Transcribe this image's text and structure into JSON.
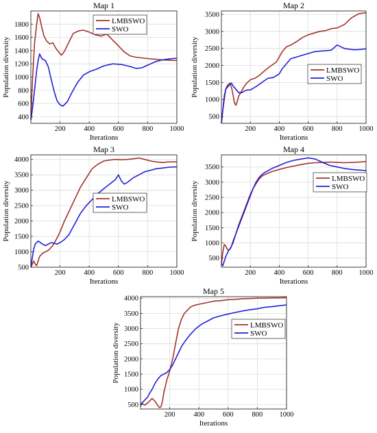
{
  "chart_data": [
    {
      "type": "line",
      "title": "Map 1",
      "xlabel": "Iterations",
      "ylabel": "Population diversity",
      "xlim": [
        0,
        1000
      ],
      "ylim": [
        300,
        2000
      ],
      "xticks": [
        200,
        400,
        600,
        800,
        1000
      ],
      "yticks": [
        400,
        600,
        800,
        1000,
        1200,
        1400,
        1600,
        1800
      ],
      "grid": true,
      "legend_position": "top-right",
      "series": [
        {
          "name": "LMBSWO",
          "color": "#a3322a",
          "x": [
            0,
            10,
            25,
            40,
            50,
            60,
            75,
            90,
            110,
            130,
            150,
            170,
            190,
            210,
            230,
            250,
            270,
            290,
            310,
            330,
            360,
            400,
            440,
            480,
            520,
            560,
            600,
            640,
            680,
            720,
            760,
            800,
            850,
            900,
            950,
            1000
          ],
          "y": [
            350,
            900,
            1500,
            1800,
            1960,
            1900,
            1750,
            1620,
            1540,
            1500,
            1520,
            1440,
            1380,
            1330,
            1390,
            1480,
            1570,
            1660,
            1680,
            1700,
            1710,
            1680,
            1640,
            1620,
            1650,
            1560,
            1470,
            1380,
            1320,
            1300,
            1290,
            1280,
            1270,
            1260,
            1255,
            1250
          ]
        },
        {
          "name": "SWO",
          "color": "#1f1fd6",
          "x": [
            0,
            10,
            20,
            30,
            40,
            50,
            60,
            70,
            80,
            100,
            120,
            140,
            160,
            180,
            200,
            220,
            250,
            280,
            320,
            360,
            400,
            450,
            500,
            560,
            620,
            680,
            720,
            760,
            800,
            850,
            900,
            950,
            1000
          ],
          "y": [
            350,
            500,
            700,
            900,
            1100,
            1250,
            1350,
            1300,
            1270,
            1250,
            1150,
            960,
            780,
            640,
            580,
            560,
            630,
            760,
            920,
            1030,
            1080,
            1120,
            1170,
            1200,
            1190,
            1160,
            1130,
            1140,
            1180,
            1230,
            1260,
            1275,
            1285
          ]
        }
      ]
    },
    {
      "type": "line",
      "title": "Map 2",
      "xlabel": "Iterations",
      "ylabel": "Population diversity",
      "xlim": [
        0,
        1000
      ],
      "ylim": [
        300,
        3600
      ],
      "xticks": [
        200,
        400,
        600,
        800,
        1000
      ],
      "yticks": [
        500,
        1000,
        1500,
        2000,
        2500,
        3000,
        3500
      ],
      "grid": true,
      "legend_position": "center-right",
      "series": [
        {
          "name": "LMBSWO",
          "color": "#a3322a",
          "x": [
            0,
            10,
            20,
            30,
            40,
            50,
            60,
            70,
            80,
            90,
            100,
            110,
            120,
            140,
            160,
            180,
            200,
            230,
            260,
            300,
            340,
            380,
            400,
            420,
            450,
            480,
            520,
            560,
            600,
            640,
            680,
            720,
            760,
            800,
            850,
            900,
            950,
            1000
          ],
          "y": [
            300,
            700,
            1000,
            1300,
            1400,
            1450,
            1480,
            1350,
            1150,
            900,
            830,
            950,
            1100,
            1250,
            1400,
            1500,
            1580,
            1620,
            1700,
            1850,
            1980,
            2100,
            2250,
            2400,
            2550,
            2600,
            2700,
            2820,
            2900,
            2950,
            3000,
            3020,
            3080,
            3100,
            3200,
            3400,
            3520,
            3550
          ]
        },
        {
          "name": "SWO",
          "color": "#1f1fd6",
          "x": [
            0,
            10,
            20,
            30,
            40,
            50,
            60,
            70,
            80,
            100,
            120,
            140,
            160,
            180,
            200,
            240,
            280,
            320,
            360,
            400,
            420,
            450,
            480,
            520,
            560,
            600,
            640,
            680,
            720,
            760,
            800,
            820,
            850,
            880,
            920,
            960,
            1000
          ],
          "y": [
            300,
            700,
            1100,
            1300,
            1350,
            1400,
            1450,
            1480,
            1400,
            1300,
            1200,
            1200,
            1250,
            1280,
            1280,
            1380,
            1500,
            1620,
            1650,
            1750,
            1900,
            2050,
            2200,
            2250,
            2300,
            2350,
            2400,
            2420,
            2430,
            2450,
            2600,
            2560,
            2500,
            2480,
            2460,
            2470,
            2490
          ]
        }
      ]
    },
    {
      "type": "line",
      "title": "Map 3",
      "xlabel": "Iterations",
      "ylabel": "Population diversity",
      "xlim": [
        0,
        1000
      ],
      "ylim": [
        500,
        4150
      ],
      "xticks": [
        200,
        400,
        600,
        800,
        1000
      ],
      "yticks": [
        500,
        1000,
        1500,
        2000,
        2500,
        3000,
        3500,
        4000
      ],
      "grid": true,
      "legend_position": "center-right",
      "series": [
        {
          "name": "LMBSWO",
          "color": "#a3322a",
          "x": [
            0,
            10,
            20,
            30,
            40,
            50,
            60,
            80,
            100,
            120,
            150,
            180,
            200,
            230,
            260,
            300,
            340,
            380,
            420,
            460,
            500,
            540,
            580,
            620,
            660,
            700,
            740,
            780,
            820,
            860,
            900,
            940,
            1000
          ],
          "y": [
            500,
            600,
            700,
            600,
            550,
            700,
            850,
            950,
            1000,
            1050,
            1200,
            1450,
            1650,
            2000,
            2300,
            2700,
            3100,
            3400,
            3700,
            3850,
            3950,
            3980,
            4000,
            3990,
            4000,
            4020,
            4050,
            4000,
            3950,
            3920,
            3900,
            3920,
            3920
          ]
        },
        {
          "name": "SWO",
          "color": "#1f1fd6",
          "x": [
            0,
            10,
            20,
            30,
            40,
            50,
            60,
            80,
            100,
            120,
            140,
            160,
            180,
            200,
            230,
            260,
            300,
            340,
            380,
            420,
            460,
            500,
            540,
            580,
            600,
            620,
            640,
            660,
            700,
            740,
            780,
            820,
            860,
            900,
            950,
            1000
          ],
          "y": [
            500,
            800,
            1100,
            1250,
            1300,
            1350,
            1320,
            1250,
            1200,
            1250,
            1300,
            1280,
            1250,
            1300,
            1400,
            1550,
            1900,
            2250,
            2500,
            2700,
            2900,
            3050,
            3200,
            3350,
            3500,
            3300,
            3200,
            3250,
            3400,
            3500,
            3600,
            3650,
            3700,
            3720,
            3750,
            3760
          ]
        }
      ]
    },
    {
      "type": "line",
      "title": "Map 4",
      "xlabel": "Iterations",
      "ylabel": "Population diversity",
      "xlim": [
        0,
        1000
      ],
      "ylim": [
        200,
        3900
      ],
      "xticks": [
        200,
        400,
        600,
        800,
        1000
      ],
      "yticks": [
        500,
        1000,
        1500,
        2000,
        2500,
        3000,
        3500
      ],
      "grid": true,
      "legend_position": "center-right",
      "series": [
        {
          "name": "LMBSWO",
          "color": "#a3322a",
          "x": [
            0,
            10,
            20,
            30,
            40,
            50,
            60,
            70,
            80,
            100,
            120,
            140,
            160,
            180,
            200,
            220,
            240,
            260,
            280,
            300,
            350,
            400,
            450,
            500,
            550,
            600,
            650,
            700,
            750,
            800,
            850,
            900,
            950,
            1000
          ],
          "y": [
            300,
            700,
            950,
            900,
            800,
            750,
            820,
            900,
            1050,
            1300,
            1600,
            1850,
            2100,
            2350,
            2600,
            2800,
            2950,
            3100,
            3200,
            3250,
            3350,
            3420,
            3480,
            3530,
            3580,
            3620,
            3640,
            3650,
            3660,
            3650,
            3640,
            3650,
            3660,
            3680
          ]
        },
        {
          "name": "SWO",
          "color": "#1f1fd6",
          "x": [
            0,
            10,
            20,
            30,
            40,
            50,
            60,
            80,
            100,
            120,
            140,
            160,
            180,
            200,
            220,
            240,
            260,
            280,
            300,
            350,
            400,
            450,
            500,
            550,
            600,
            650,
            700,
            750,
            800,
            850,
            900,
            950,
            1000
          ],
          "y": [
            300,
            250,
            400,
            550,
            650,
            750,
            800,
            1000,
            1300,
            1550,
            1800,
            2050,
            2300,
            2550,
            2800,
            3000,
            3150,
            3250,
            3320,
            3450,
            3550,
            3650,
            3720,
            3760,
            3800,
            3760,
            3650,
            3550,
            3500,
            3450,
            3420,
            3400,
            3380
          ]
        }
      ]
    },
    {
      "type": "line",
      "title": "Map 5",
      "xlabel": "Iterations",
      "ylabel": "Population diversity",
      "xlim": [
        0,
        1000
      ],
      "ylim": [
        350,
        4050
      ],
      "xticks": [
        200,
        400,
        600,
        800,
        1000
      ],
      "yticks": [
        500,
        1000,
        1500,
        2000,
        2500,
        3000,
        3500,
        4000
      ],
      "grid": true,
      "legend_position": "center-right",
      "series": [
        {
          "name": "LMBSWO",
          "color": "#a3322a",
          "x": [
            0,
            10,
            20,
            30,
            40,
            50,
            60,
            70,
            80,
            100,
            120,
            130,
            140,
            150,
            160,
            170,
            180,
            200,
            220,
            240,
            260,
            280,
            300,
            320,
            340,
            360,
            380,
            400,
            450,
            500,
            550,
            600,
            650,
            700,
            750,
            800,
            850,
            900,
            950,
            1000
          ],
          "y": [
            450,
            550,
            500,
            480,
            520,
            550,
            600,
            650,
            700,
            600,
            450,
            400,
            420,
            600,
            900,
            1100,
            1300,
            1600,
            2000,
            2500,
            3000,
            3300,
            3500,
            3600,
            3700,
            3750,
            3780,
            3800,
            3850,
            3900,
            3920,
            3950,
            3960,
            3980,
            3990,
            4000,
            4000,
            4010,
            4010,
            4020
          ]
        },
        {
          "name": "SWO",
          "color": "#1f1fd6",
          "x": [
            0,
            10,
            20,
            30,
            40,
            50,
            60,
            80,
            100,
            120,
            140,
            160,
            180,
            200,
            220,
            240,
            260,
            280,
            300,
            340,
            380,
            420,
            460,
            500,
            550,
            600,
            650,
            700,
            750,
            800,
            850,
            900,
            950,
            1000
          ],
          "y": [
            500,
            550,
            600,
            650,
            700,
            750,
            850,
            1000,
            1200,
            1350,
            1450,
            1500,
            1550,
            1650,
            1800,
            2000,
            2200,
            2400,
            2550,
            2800,
            3000,
            3150,
            3250,
            3350,
            3420,
            3480,
            3530,
            3580,
            3620,
            3650,
            3700,
            3720,
            3750,
            3780
          ]
        }
      ]
    }
  ]
}
